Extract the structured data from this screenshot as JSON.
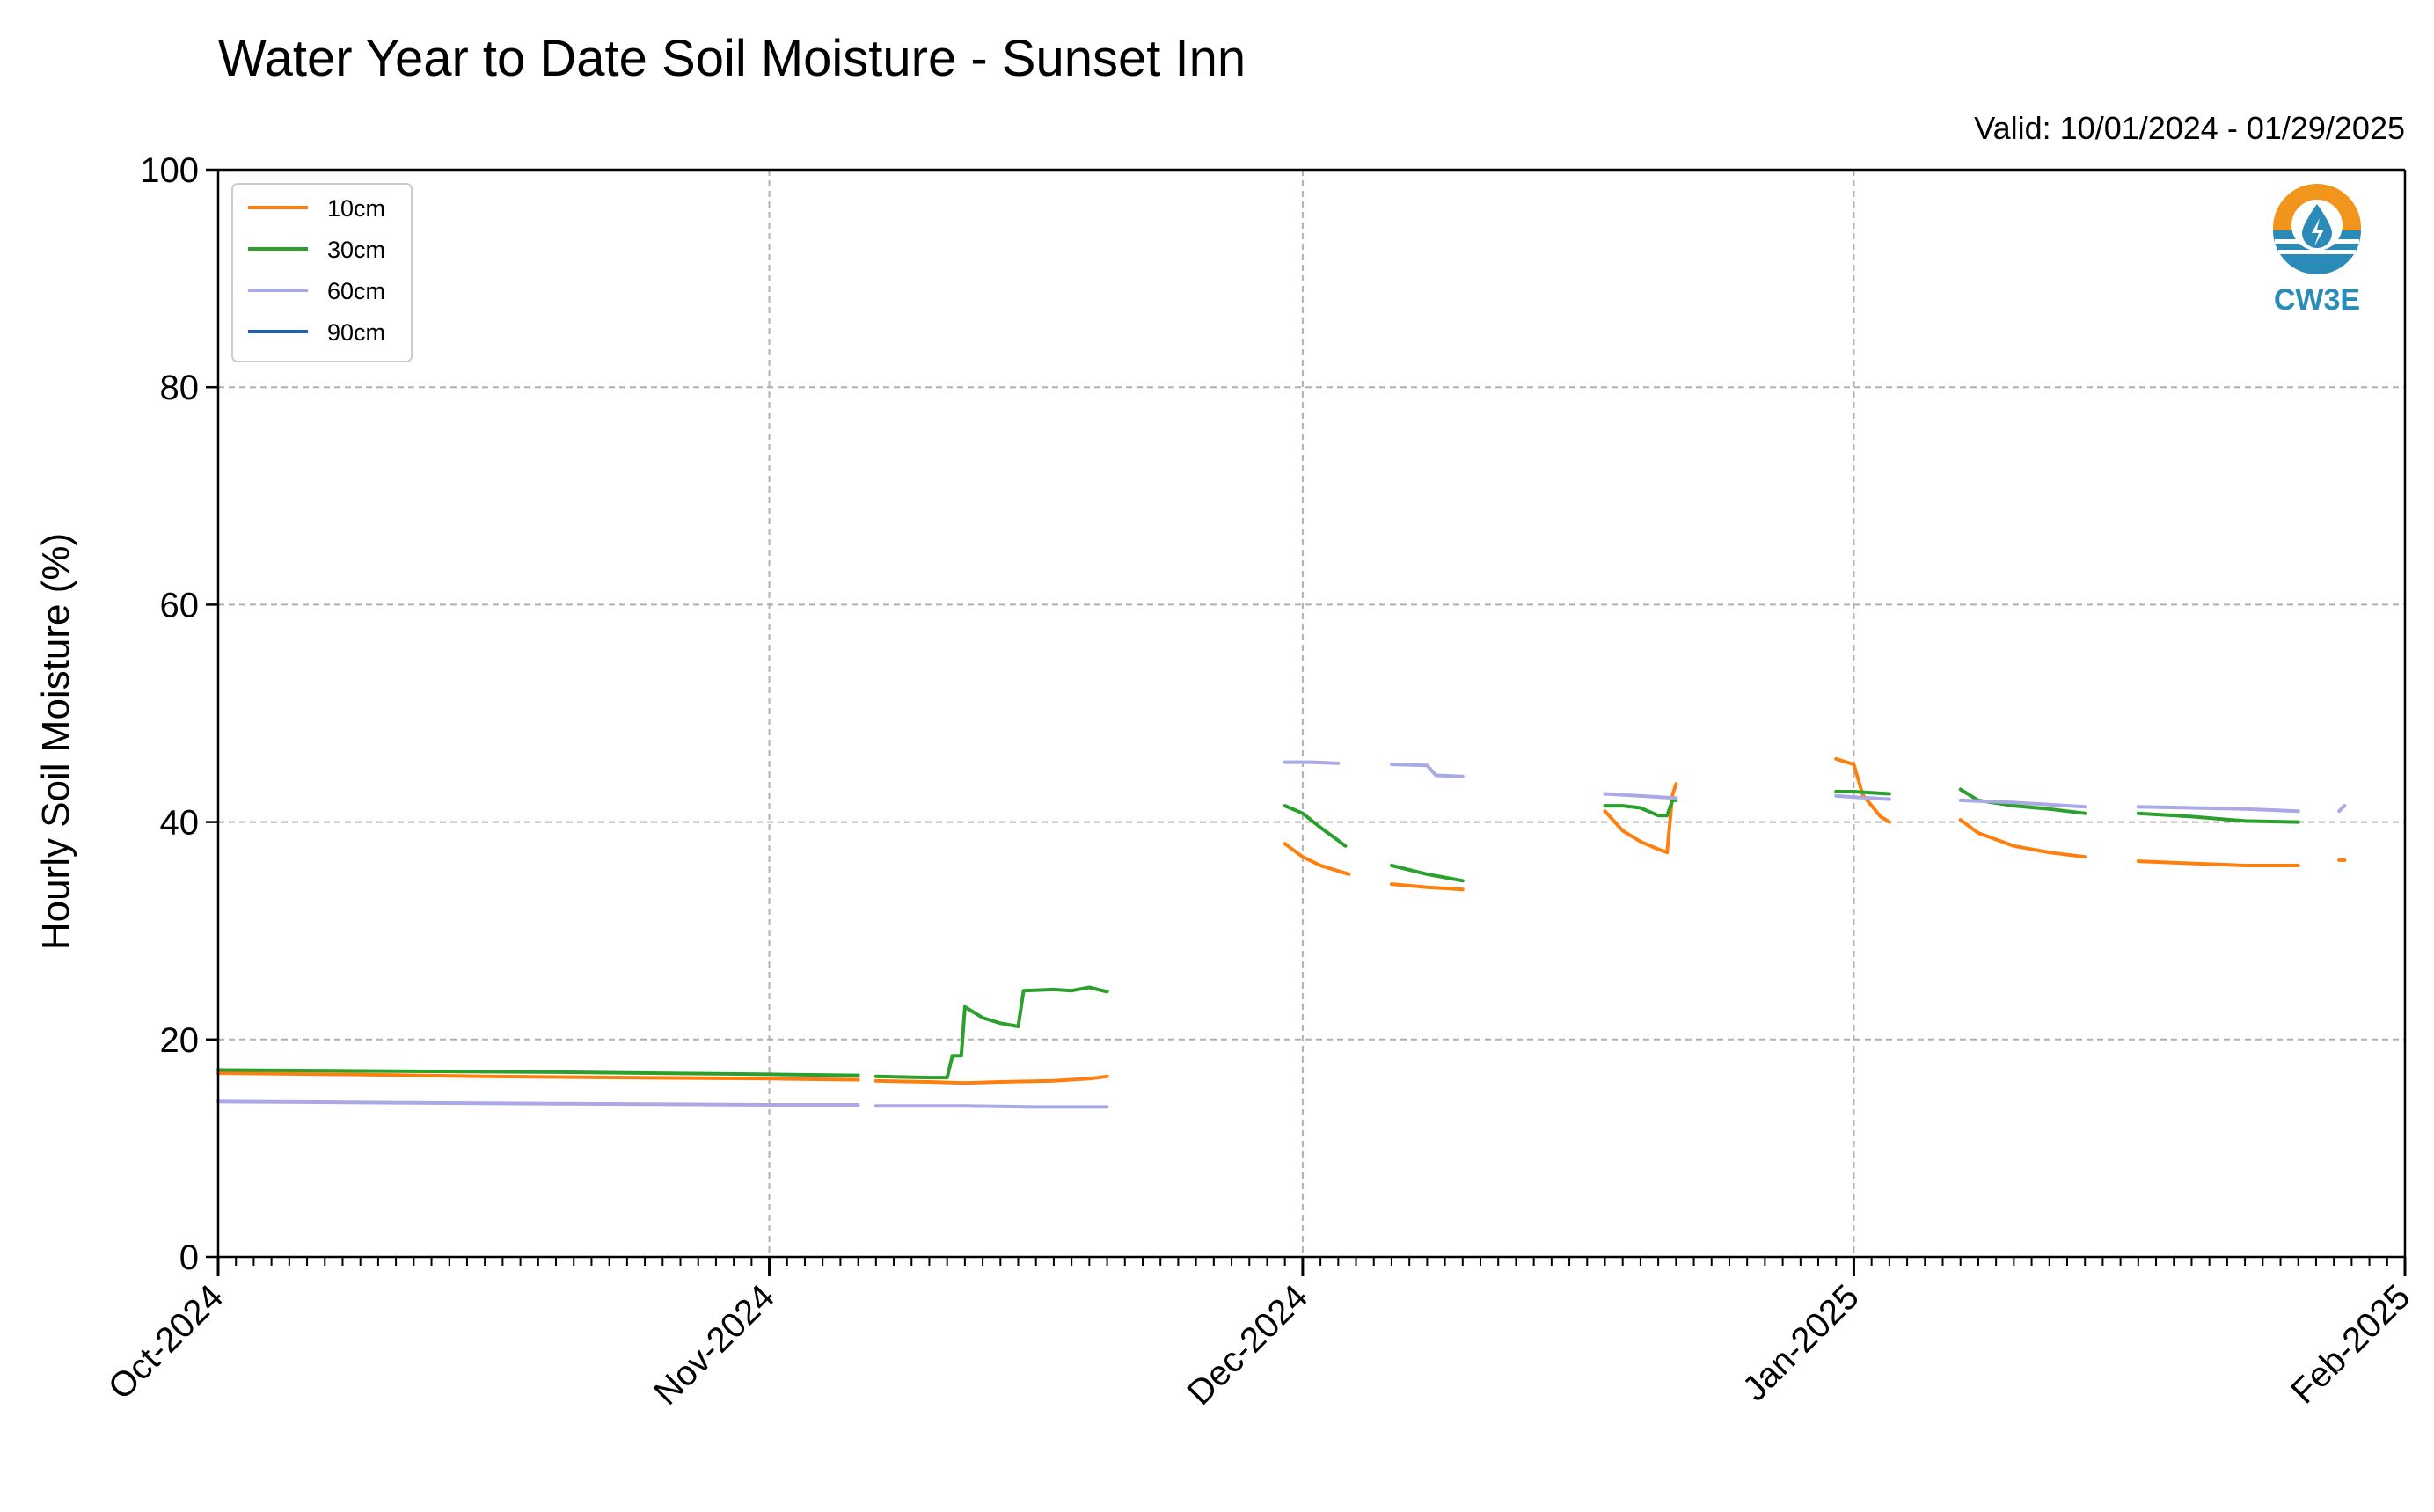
{
  "chart_data": {
    "type": "line",
    "title": "Water Year to Date Soil Moisture - Sunset Inn",
    "subtitle": "Valid: 10/01/2024 - 01/29/2025",
    "xlabel": "",
    "ylabel": "Hourly Soil Moisture (%)",
    "ylim": [
      0,
      100
    ],
    "xlim": [
      "2024-10-01",
      "2025-02-01"
    ],
    "yticks": [
      "0",
      "20",
      "40",
      "60",
      "80",
      "100"
    ],
    "xticks": [
      "Oct-2024",
      "Nov-2024",
      "Dec-2024",
      "Jan-2025",
      "Feb-2025"
    ],
    "grid": true,
    "legend_position": "upper-left",
    "logo_text": "CW3E",
    "series": [
      {
        "name": "10cm",
        "color": "#ff7f0e",
        "segments": [
          [
            [
              "2024-10-01",
              16.9
            ],
            [
              "2024-10-08",
              16.8
            ],
            [
              "2024-10-16",
              16.6
            ],
            [
              "2024-10-24",
              16.5
            ],
            [
              "2024-11-01",
              16.4
            ],
            [
              "2024-11-06",
              16.3
            ]
          ],
          [
            [
              "2024-11-07",
              16.2
            ],
            [
              "2024-11-10",
              16.1
            ],
            [
              "2024-11-12",
              16.0
            ],
            [
              "2024-11-14",
              16.1
            ],
            [
              "2024-11-17",
              16.2
            ],
            [
              "2024-11-19",
              16.4
            ],
            [
              "2024-11-20",
              16.6
            ]
          ],
          [
            [
              "2024-11-30",
              38.0
            ],
            [
              "2024-12-01",
              36.8
            ],
            [
              "2024-12-02",
              36.0
            ],
            [
              "2024-12-03",
              35.5
            ],
            [
              "2024-12-03.6",
              35.2
            ]
          ],
          [
            [
              "2024-12-06",
              34.3
            ],
            [
              "2024-12-08",
              34.0
            ],
            [
              "2024-12-10",
              33.8
            ]
          ],
          [
            [
              "2024-12-18",
              41.0
            ],
            [
              "2024-12-19",
              39.2
            ],
            [
              "2024-12-20",
              38.2
            ],
            [
              "2024-12-21",
              37.5
            ],
            [
              "2024-12-21.5",
              37.2
            ],
            [
              "2024-12-21.8",
              42.5
            ],
            [
              "2024-12-22",
              43.5
            ]
          ],
          [
            [
              "2024-12-31",
              45.8
            ],
            [
              "2025-01-01",
              45.3
            ],
            [
              "2025-01-01.5",
              42.5
            ],
            [
              "2025-01-02.5",
              40.5
            ],
            [
              "2025-01-03",
              40.0
            ]
          ],
          [
            [
              "2025-01-07",
              40.2
            ],
            [
              "2025-01-08",
              39.0
            ],
            [
              "2025-01-10",
              37.8
            ],
            [
              "2025-01-12",
              37.2
            ],
            [
              "2025-01-14",
              36.8
            ]
          ],
          [
            [
              "2025-01-17",
              36.4
            ],
            [
              "2025-01-20",
              36.2
            ],
            [
              "2025-01-23",
              36.0
            ],
            [
              "2025-01-26",
              36.0
            ]
          ],
          [
            [
              "2025-01-28.3",
              36.5
            ],
            [
              "2025-01-28.6",
              36.5
            ]
          ]
        ]
      },
      {
        "name": "30cm",
        "color": "#2ca02c",
        "segments": [
          [
            [
              "2024-10-01",
              17.2
            ],
            [
              "2024-10-10",
              17.1
            ],
            [
              "2024-10-20",
              17.0
            ],
            [
              "2024-11-01",
              16.8
            ],
            [
              "2024-11-06",
              16.7
            ]
          ],
          [
            [
              "2024-11-07",
              16.6
            ],
            [
              "2024-11-10",
              16.5
            ],
            [
              "2024-11-11",
              16.5
            ],
            [
              "2024-11-11.3",
              18.5
            ],
            [
              "2024-11-11.8",
              18.5
            ],
            [
              "2024-11-12",
              23.0
            ],
            [
              "2024-11-13",
              22.0
            ],
            [
              "2024-11-14",
              21.5
            ],
            [
              "2024-11-15",
              21.2
            ],
            [
              "2024-11-15.3",
              24.5
            ],
            [
              "2024-11-17",
              24.6
            ],
            [
              "2024-11-18",
              24.5
            ],
            [
              "2024-11-19",
              24.8
            ],
            [
              "2024-11-20",
              24.4
            ]
          ],
          [
            [
              "2024-11-30",
              41.5
            ],
            [
              "2024-12-01",
              40.8
            ],
            [
              "2024-12-02",
              39.5
            ],
            [
              "2024-12-03",
              38.3
            ],
            [
              "2024-12-03.4",
              37.8
            ]
          ],
          [
            [
              "2024-12-06",
              36.0
            ],
            [
              "2024-12-08",
              35.2
            ],
            [
              "2024-12-10",
              34.6
            ]
          ],
          [
            [
              "2024-12-18",
              41.5
            ],
            [
              "2024-12-19",
              41.5
            ],
            [
              "2024-12-20",
              41.3
            ],
            [
              "2024-12-21",
              40.6
            ],
            [
              "2024-12-21.5",
              40.6
            ],
            [
              "2024-12-21.8",
              42.0
            ],
            [
              "2024-12-22",
              42.0
            ]
          ],
          [
            [
              "2024-12-31",
              42.8
            ],
            [
              "2025-01-01",
              42.8
            ],
            [
              "2025-01-02",
              42.7
            ],
            [
              "2025-01-03",
              42.6
            ]
          ],
          [
            [
              "2025-01-07",
              43.0
            ],
            [
              "2025-01-08",
              42.0
            ],
            [
              "2025-01-10",
              41.5
            ],
            [
              "2025-01-12",
              41.2
            ],
            [
              "2025-01-14",
              40.8
            ]
          ],
          [
            [
              "2025-01-17",
              40.8
            ],
            [
              "2025-01-20",
              40.5
            ],
            [
              "2025-01-23",
              40.1
            ],
            [
              "2025-01-26",
              40.0
            ]
          ]
        ]
      },
      {
        "name": "60cm",
        "color": "#a9a9e6",
        "segments": [
          [
            [
              "2024-10-01",
              14.3
            ],
            [
              "2024-10-10",
              14.2
            ],
            [
              "2024-10-20",
              14.1
            ],
            [
              "2024-11-01",
              14.0
            ],
            [
              "2024-11-06",
              14.0
            ]
          ],
          [
            [
              "2024-11-07",
              13.9
            ],
            [
              "2024-11-12",
              13.9
            ],
            [
              "2024-11-16",
              13.8
            ],
            [
              "2024-11-20",
              13.8
            ]
          ],
          [
            [
              "2024-11-30",
              45.5
            ],
            [
              "2024-12-01.5",
              45.5
            ],
            [
              "2024-12-03",
              45.4
            ]
          ],
          [
            [
              "2024-12-06",
              45.3
            ],
            [
              "2024-12-08",
              45.2
            ],
            [
              "2024-12-08.5",
              44.3
            ],
            [
              "2024-12-10",
              44.2
            ]
          ],
          [
            [
              "2024-12-18",
              42.6
            ],
            [
              "2024-12-20",
              42.4
            ],
            [
              "2024-12-22",
              42.2
            ]
          ],
          [
            [
              "2024-12-31",
              42.4
            ],
            [
              "2025-01-01",
              42.3
            ],
            [
              "2025-01-02",
              42.2
            ],
            [
              "2025-01-03",
              42.1
            ]
          ],
          [
            [
              "2025-01-07",
              42.0
            ],
            [
              "2025-01-10",
              41.8
            ],
            [
              "2025-01-12",
              41.6
            ],
            [
              "2025-01-14",
              41.4
            ]
          ],
          [
            [
              "2025-01-17",
              41.4
            ],
            [
              "2025-01-20",
              41.3
            ],
            [
              "2025-01-23",
              41.2
            ],
            [
              "2025-01-26",
              41.0
            ]
          ],
          [
            [
              "2025-01-28.3",
              41.0
            ],
            [
              "2025-01-28.6",
              41.5
            ]
          ]
        ]
      },
      {
        "name": "90cm",
        "color": "#1f5fbf",
        "segments": []
      }
    ]
  }
}
